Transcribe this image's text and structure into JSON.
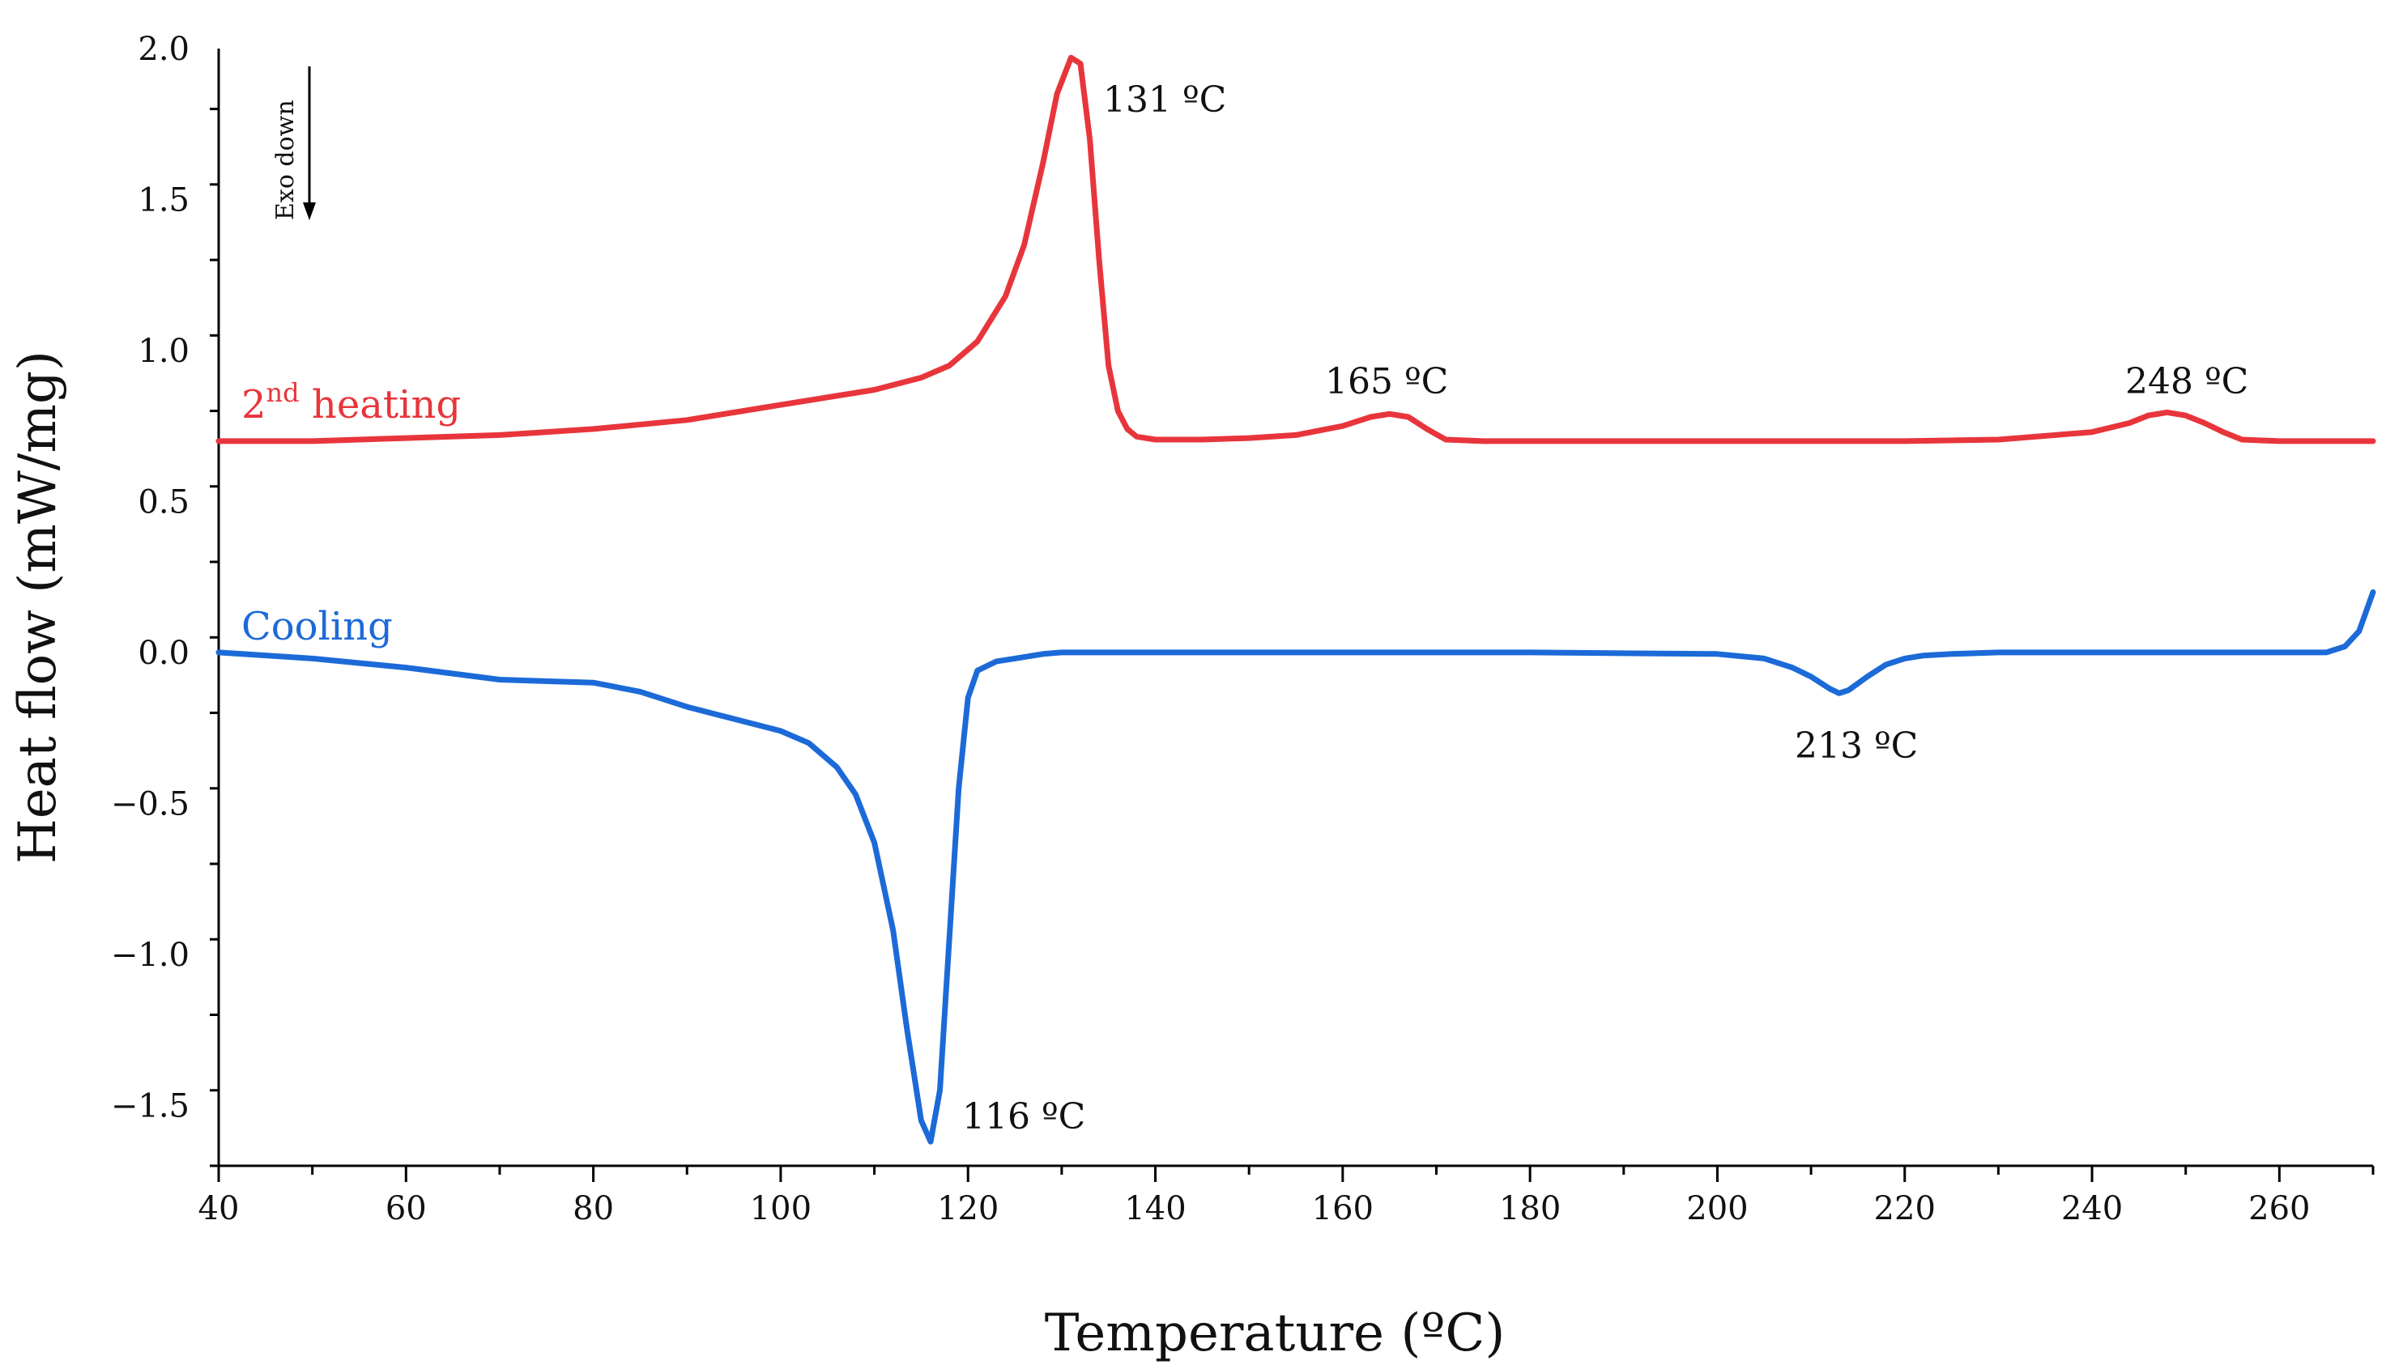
{
  "chart_data": {
    "type": "line",
    "xlabel": "Temperature (ºC)",
    "ylabel": "Heat flow (mW/mg)",
    "xlim": [
      40,
      270
    ],
    "ylim": [
      -1.7,
      2.0
    ],
    "xticks": [
      40,
      60,
      80,
      100,
      120,
      140,
      160,
      180,
      200,
      220,
      240,
      260
    ],
    "xtick_labels": [
      "40",
      "60",
      "80",
      "100",
      "120",
      "140",
      "160",
      "180",
      "200",
      "220",
      "240",
      "260"
    ],
    "yticks": [
      2.0,
      1.5,
      1.0,
      0.5,
      0.0,
      -0.5,
      -1.0,
      -1.5
    ],
    "ytick_labels": [
      "2.0",
      "1.5",
      "1.0",
      "0.5",
      "0.0",
      "−0.5",
      "−1.0",
      "−1.5"
    ],
    "exo_indicator": "Exo down",
    "series": [
      {
        "name": "2nd heating",
        "label_main": "2",
        "label_sup": "nd",
        "label_rest": " heating",
        "color": "#e8353b",
        "x": [
          40,
          50,
          60,
          70,
          80,
          90,
          100,
          110,
          115,
          118,
          121,
          124,
          126,
          128,
          129.5,
          131,
          132,
          133,
          134,
          135,
          136,
          137,
          138,
          140,
          145,
          150,
          155,
          160,
          163,
          165,
          167,
          169,
          171,
          175,
          180,
          200,
          220,
          230,
          240,
          244,
          246,
          248,
          250,
          252,
          254,
          256,
          260,
          270
        ],
        "y": [
          0.7,
          0.7,
          0.71,
          0.72,
          0.74,
          0.77,
          0.82,
          0.87,
          0.91,
          0.95,
          1.03,
          1.18,
          1.35,
          1.62,
          1.85,
          1.97,
          1.95,
          1.7,
          1.3,
          0.95,
          0.8,
          0.74,
          0.715,
          0.705,
          0.705,
          0.71,
          0.72,
          0.75,
          0.78,
          0.79,
          0.78,
          0.74,
          0.705,
          0.7,
          0.7,
          0.7,
          0.7,
          0.705,
          0.73,
          0.76,
          0.785,
          0.795,
          0.785,
          0.76,
          0.73,
          0.705,
          0.7,
          0.7
        ]
      },
      {
        "name": "Cooling",
        "color": "#1c6ad8",
        "x": [
          40,
          50,
          60,
          70,
          80,
          85,
          90,
          95,
          100,
          103,
          106,
          108,
          110,
          112,
          113.5,
          115,
          116,
          117,
          118,
          119,
          120,
          121,
          123,
          125,
          128,
          130,
          140,
          160,
          180,
          200,
          205,
          208,
          210,
          212,
          213,
          214,
          216,
          218,
          220,
          222,
          225,
          230,
          240,
          250,
          260,
          265,
          267,
          268.5,
          270
        ],
        "y": [
          0.0,
          -0.02,
          -0.05,
          -0.09,
          -0.1,
          -0.13,
          -0.18,
          -0.22,
          -0.26,
          -0.3,
          -0.38,
          -0.47,
          -0.63,
          -0.92,
          -1.25,
          -1.55,
          -1.62,
          -1.45,
          -0.95,
          -0.45,
          -0.15,
          -0.06,
          -0.03,
          -0.02,
          -0.005,
          0.0,
          0.0,
          0.0,
          0.0,
          -0.005,
          -0.02,
          -0.05,
          -0.08,
          -0.12,
          -0.135,
          -0.125,
          -0.08,
          -0.04,
          -0.02,
          -0.01,
          -0.005,
          0.0,
          0.0,
          0.0,
          0.0,
          0.0,
          0.02,
          0.07,
          0.2
        ]
      }
    ],
    "annotations": [
      {
        "text": "131 ºC",
        "x": 131,
        "y": 1.97,
        "series": "2nd heating"
      },
      {
        "text": "165 ºC",
        "x": 165,
        "y": 0.79,
        "series": "2nd heating"
      },
      {
        "text": "248 ºC",
        "x": 248,
        "y": 0.795,
        "series": "2nd heating"
      },
      {
        "text": "116 ºC",
        "x": 116,
        "y": -1.62,
        "series": "Cooling"
      },
      {
        "text": "213 ºC",
        "x": 213,
        "y": -0.135,
        "series": "Cooling"
      }
    ]
  }
}
